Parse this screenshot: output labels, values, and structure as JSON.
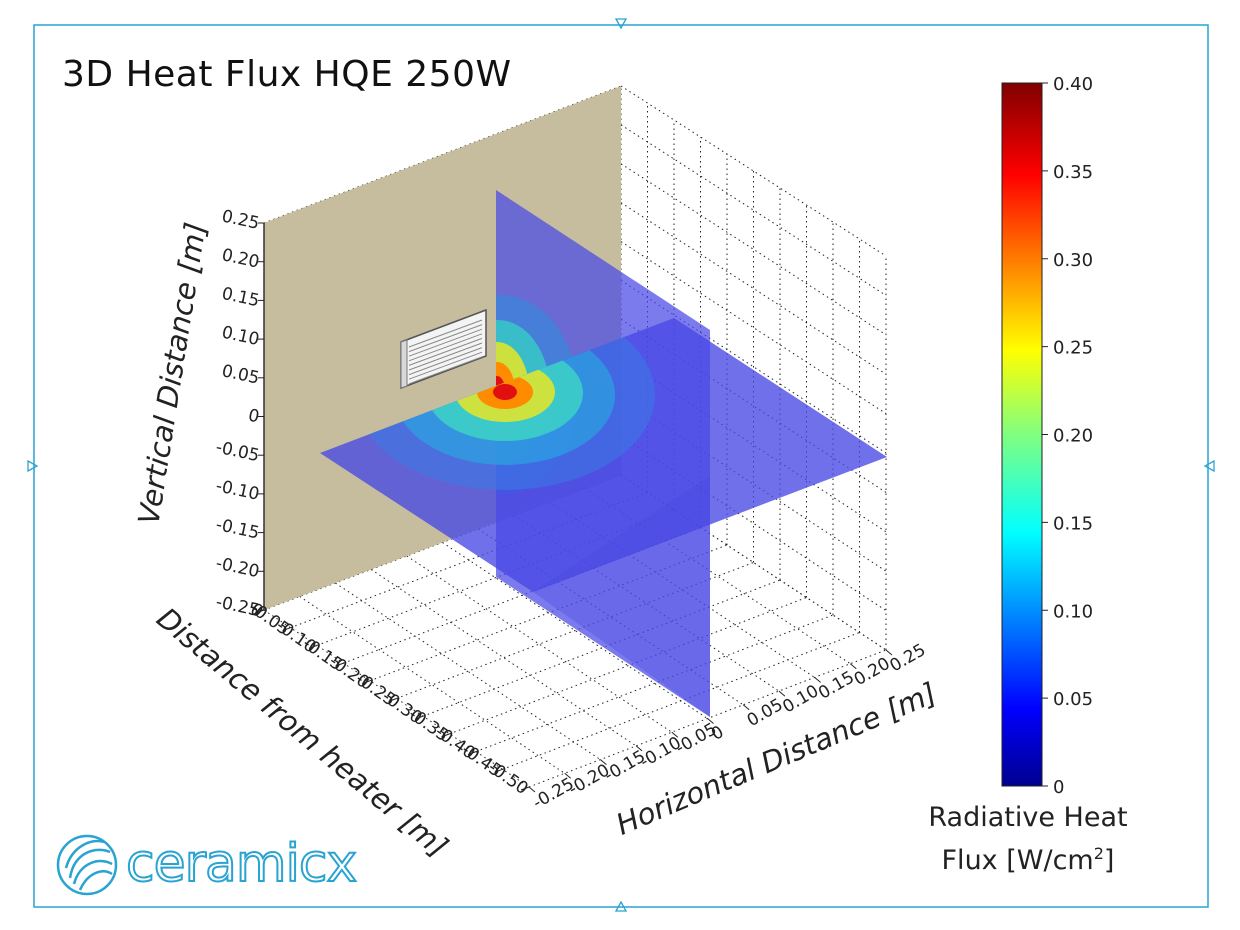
{
  "title": "3D Heat Flux HQE 250W",
  "colorbar": {
    "label_line1": "Radiative Heat",
    "label_line2_pre": "Flux [W/cm",
    "label_sup": "2",
    "label_line2_post": "]",
    "ticks": [
      "0",
      "0.05",
      "0.10",
      "0.15",
      "0.20",
      "0.25",
      "0.30",
      "0.35",
      "0.40"
    ],
    "colormap": "jet"
  },
  "logo": {
    "text": "ceramicx",
    "icon": "ceramicx-swirl-icon"
  },
  "colors": {
    "frame": "#29a3d2",
    "wall": "#c5bd9d",
    "plane_low": "#4848e6",
    "logo": "#29a3d2"
  },
  "chart_data": {
    "type": "heatmap",
    "title": "3D Heat Flux HQE 250W",
    "axes": {
      "z": {
        "label": "Vertical Distance [m]",
        "range": [
          -0.25,
          0.25
        ],
        "ticks": [
          "0.25",
          "0.20",
          "0.15",
          "0.10",
          "0.05",
          "0",
          "-0.05",
          "-0.10",
          "-0.15",
          "-0.20",
          "-0.25"
        ]
      },
      "y": {
        "label": "Distance from heater [m]",
        "range": [
          -0.5,
          0
        ],
        "ticks": [
          "0",
          "-0.05",
          "-0.10",
          "-0.15",
          "-0.20",
          "-0.25",
          "-0.30",
          "-0.35",
          "-0.40",
          "-0.45",
          "-0.50"
        ]
      },
      "x": {
        "label": "Horizontal Distance [m]",
        "range": [
          -0.25,
          0.25
        ],
        "ticks": [
          "-0.25",
          "-0.20",
          "-0.15",
          "-0.10",
          "-0.05",
          "0",
          "0.05",
          "0.10",
          "0.15",
          "0.20",
          "0.25"
        ]
      }
    },
    "grid": true,
    "color_range": [
      0,
      0.4
    ],
    "peak_flux": 0.32,
    "slices": [
      "horizontal plane at vertical 0",
      "vertical plane at horizontal 0"
    ]
  }
}
